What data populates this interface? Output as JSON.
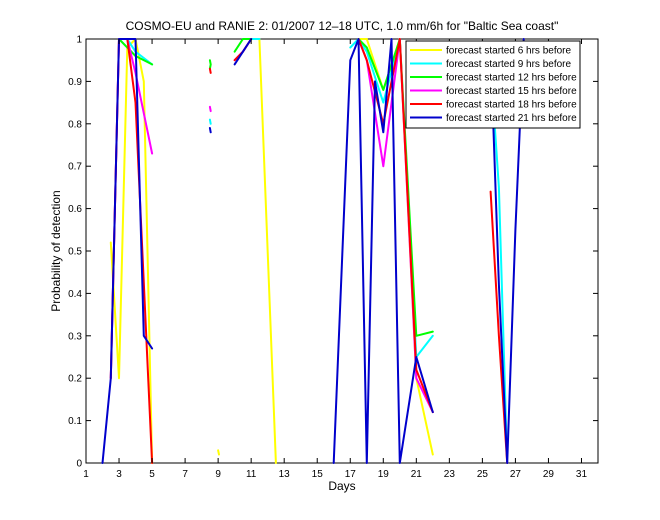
{
  "chart_data": {
    "type": "line",
    "title": "COSMO-EU and RANIE 2: 01/2007 12–18 UTC, 1.0 mm/6h for \"Baltic Sea coast\"",
    "xlabel": "Days",
    "ylabel": "Probability of detection",
    "xlim": [
      1,
      32
    ],
    "ylim": [
      0,
      1
    ],
    "xticks": [
      1,
      3,
      5,
      7,
      9,
      11,
      13,
      15,
      17,
      19,
      21,
      23,
      25,
      27,
      29,
      31
    ],
    "yticks": [
      0,
      0.1,
      0.2,
      0.3,
      0.4,
      0.5,
      0.6,
      0.7,
      0.8,
      0.9,
      1
    ],
    "ytick_labels": [
      "0",
      "0.1",
      "0.2",
      "0.3",
      "0.4",
      "0.5",
      "0.6",
      "0.7",
      "0.8",
      "0.9",
      "1"
    ],
    "grid": false,
    "legend_position": "top-right",
    "series": [
      {
        "name": "forecast started 6 hrs before",
        "color": "#ffff00",
        "segments": [
          [
            [
              2.5,
              0.52
            ],
            [
              3.0,
              0.2
            ],
            [
              3.5,
              0.98
            ],
            [
              4.0,
              1.0
            ],
            [
              4.5,
              0.9
            ],
            [
              5.0,
              0.0
            ]
          ],
          [
            [
              9.0,
              0.03
            ],
            [
              9.05,
              0.02
            ]
          ],
          [
            [
              11.0,
              1.0
            ],
            [
              11.5,
              1.0
            ],
            [
              12.5,
              0.0
            ]
          ],
          [
            [
              17.5,
              1.0
            ],
            [
              18.0,
              1.0
            ],
            [
              19.0,
              0.88
            ],
            [
              20.0,
              1.0
            ],
            [
              21.0,
              0.2
            ],
            [
              22.0,
              0.02
            ]
          ]
        ]
      },
      {
        "name": "forecast started 9 hrs before",
        "color": "#00ffff",
        "segments": [
          [
            [
              3.0,
              1.0
            ],
            [
              3.5,
              1.0
            ],
            [
              4.0,
              0.97
            ],
            [
              5.0,
              0.94
            ]
          ],
          [
            [
              8.5,
              0.81
            ],
            [
              8.55,
              0.8
            ]
          ],
          [
            [
              10.5,
              1.0
            ],
            [
              11.0,
              1.0
            ],
            [
              11.5,
              1.0
            ]
          ],
          [
            [
              17.0,
              0.98
            ],
            [
              17.5,
              1.0
            ],
            [
              18.0,
              0.97
            ],
            [
              19.0,
              0.85
            ],
            [
              20.0,
              1.0
            ],
            [
              21.0,
              0.25
            ],
            [
              22.0,
              0.3
            ]
          ],
          [
            [
              25.5,
              0.94
            ],
            [
              26.0,
              0.65
            ],
            [
              26.5,
              0.0
            ]
          ]
        ]
      },
      {
        "name": "forecast started 12 hrs before",
        "color": "#00ff00",
        "segments": [
          [
            [
              3.0,
              1.0
            ],
            [
              3.5,
              0.98
            ],
            [
              4.0,
              0.96
            ],
            [
              5.0,
              0.94
            ]
          ],
          [
            [
              8.5,
              0.95
            ],
            [
              8.55,
              0.94
            ],
            [
              8.5,
              0.93
            ]
          ],
          [
            [
              10.0,
              0.97
            ],
            [
              10.5,
              1.0
            ],
            [
              11.0,
              1.0
            ]
          ],
          [
            [
              17.5,
              1.0
            ],
            [
              18.0,
              0.98
            ],
            [
              19.0,
              0.88
            ],
            [
              20.0,
              1.0
            ],
            [
              21.0,
              0.3
            ],
            [
              22.0,
              0.31
            ]
          ]
        ]
      },
      {
        "name": "forecast started 15 hrs before",
        "color": "#ff00ff",
        "segments": [
          [
            [
              2.5,
              0.2
            ],
            [
              3.0,
              1.0
            ],
            [
              3.5,
              1.0
            ],
            [
              4.0,
              0.92
            ],
            [
              5.0,
              0.73
            ]
          ],
          [
            [
              8.5,
              0.84
            ],
            [
              8.55,
              0.83
            ]
          ],
          [
            [
              10.0,
              0.95
            ],
            [
              10.5,
              0.97
            ],
            [
              11.0,
              1.0
            ]
          ],
          [
            [
              17.5,
              1.0
            ],
            [
              18.0,
              0.95
            ],
            [
              19.0,
              0.7
            ],
            [
              20.0,
              1.0
            ],
            [
              21.0,
              0.2
            ],
            [
              22.0,
              0.12
            ]
          ]
        ]
      },
      {
        "name": "forecast started 18 hrs before",
        "color": "#ff0000",
        "segments": [
          [
            [
              2.5,
              0.2
            ],
            [
              3.0,
              1.0
            ],
            [
              3.5,
              1.0
            ],
            [
              4.0,
              0.85
            ],
            [
              5.0,
              0.0
            ]
          ],
          [
            [
              8.5,
              0.93
            ],
            [
              8.55,
              0.92
            ]
          ],
          [
            [
              10.0,
              0.95
            ],
            [
              10.5,
              0.97
            ],
            [
              11.0,
              1.0
            ]
          ],
          [
            [
              17.5,
              1.0
            ],
            [
              18.0,
              0.95
            ],
            [
              19.0,
              0.8
            ],
            [
              20.0,
              1.0
            ],
            [
              21.0,
              0.22
            ],
            [
              22.0,
              0.12
            ]
          ],
          [
            [
              25.5,
              0.64
            ],
            [
              26.0,
              0.3
            ],
            [
              26.5,
              0.0
            ]
          ]
        ]
      },
      {
        "name": "forecast started 21 hrs before",
        "color": "#0000cc",
        "segments": [
          [
            [
              2.0,
              0.0
            ],
            [
              2.5,
              0.2
            ],
            [
              3.0,
              1.0
            ],
            [
              3.5,
              1.0
            ],
            [
              4.0,
              1.0
            ],
            [
              4.5,
              0.3
            ],
            [
              5.0,
              0.27
            ]
          ],
          [
            [
              8.5,
              0.79
            ],
            [
              8.55,
              0.78
            ]
          ],
          [
            [
              10.0,
              0.94
            ],
            [
              10.5,
              0.97
            ],
            [
              11.0,
              1.0
            ]
          ],
          [
            [
              16.0,
              0.0
            ],
            [
              17.0,
              0.95
            ],
            [
              17.5,
              1.0
            ],
            [
              18.0,
              0.0
            ],
            [
              18.5,
              0.9
            ],
            [
              19.0,
              0.78
            ],
            [
              19.5,
              1.0
            ],
            [
              20.0,
              0.0
            ],
            [
              21.0,
              0.25
            ],
            [
              22.0,
              0.12
            ]
          ],
          [
            [
              25.5,
              0.98
            ],
            [
              26.0,
              0.42
            ],
            [
              26.5,
              0.0
            ],
            [
              27.0,
              0.55
            ],
            [
              27.5,
              1.0
            ]
          ]
        ]
      }
    ]
  }
}
